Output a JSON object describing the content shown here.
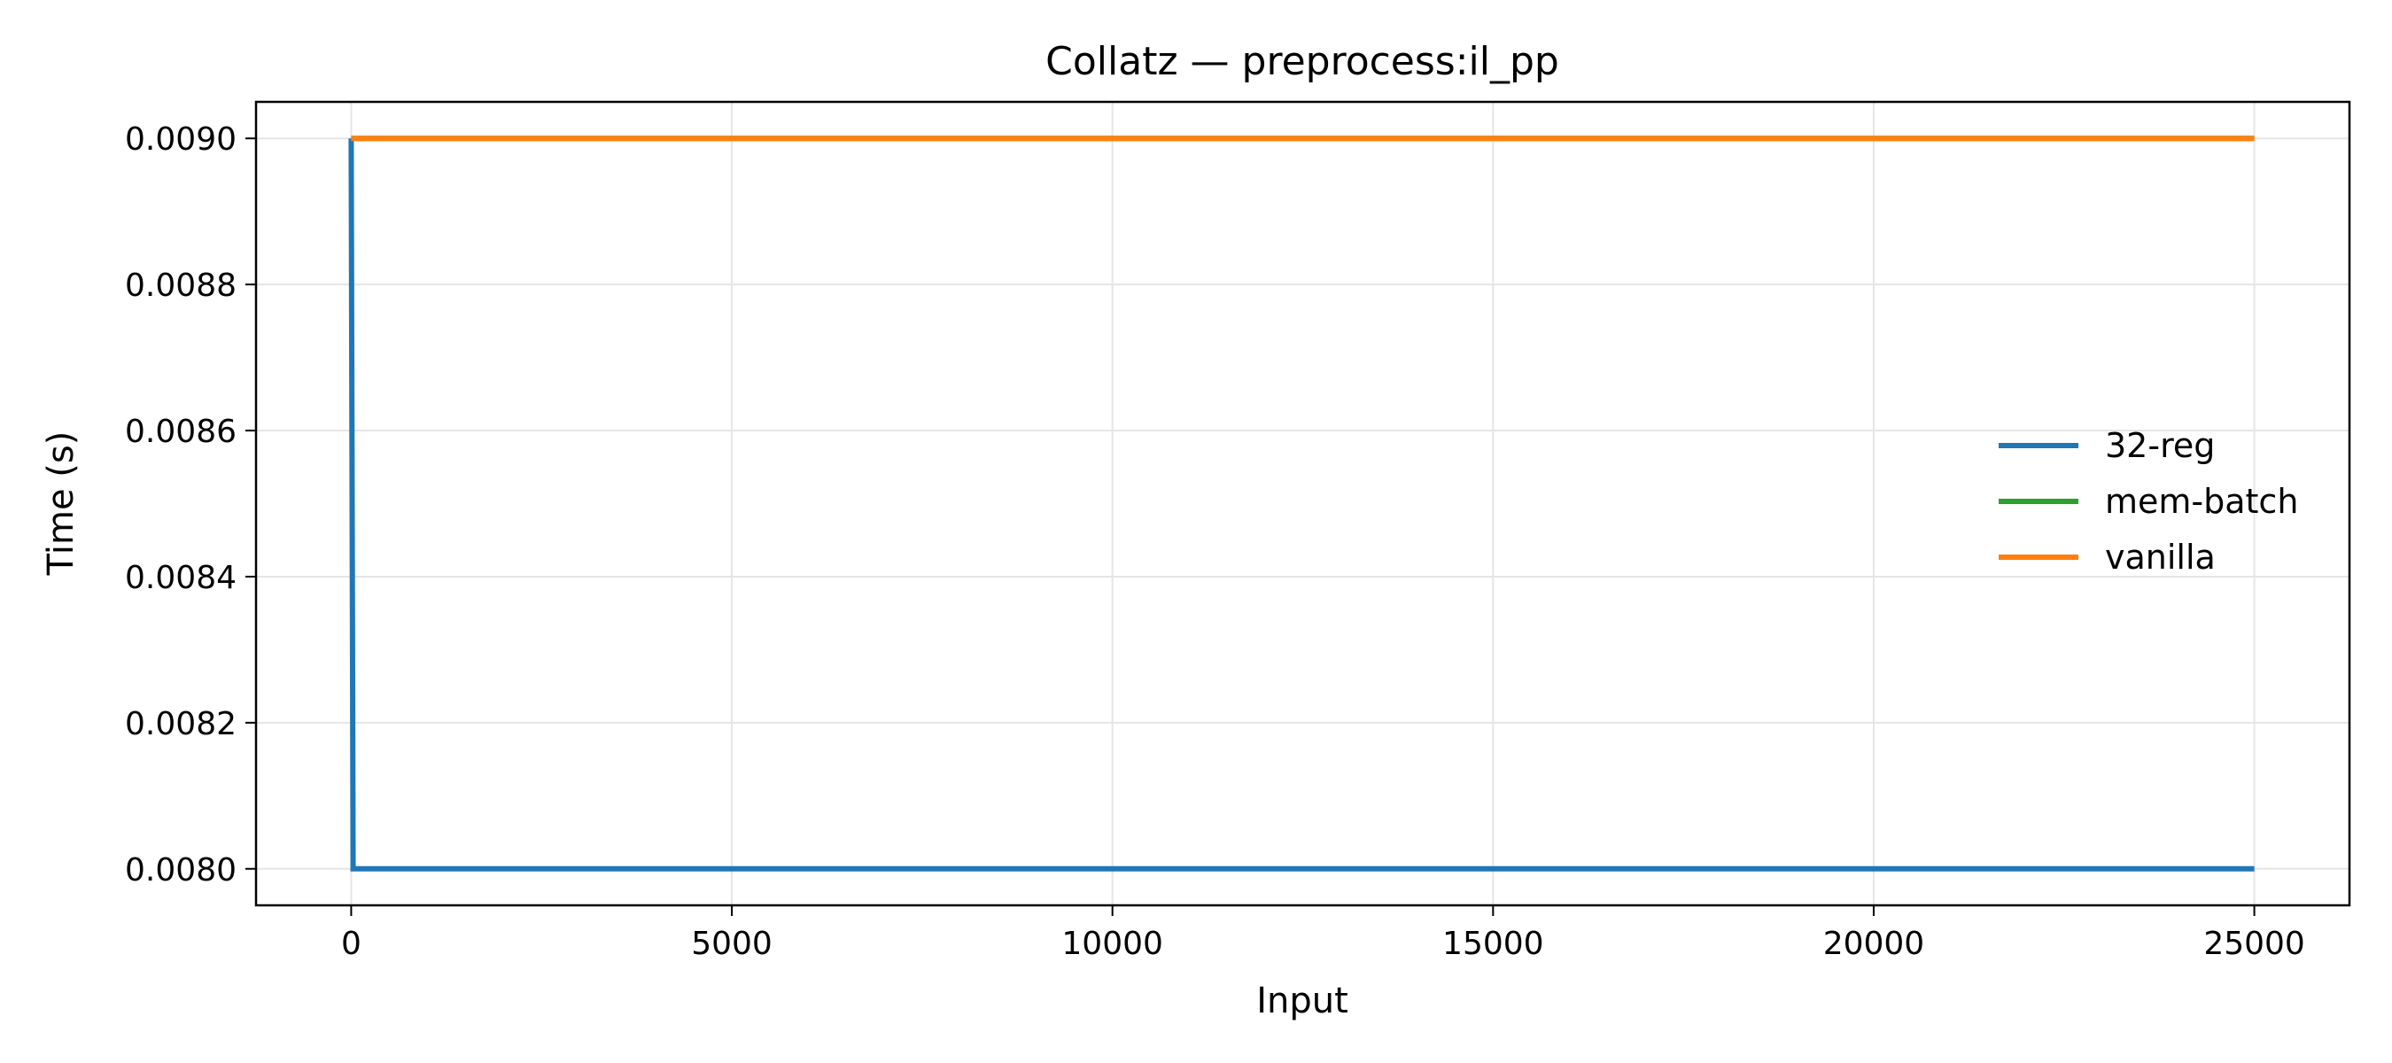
{
  "chart_data": {
    "type": "line",
    "title": "Collatz — preprocess:il_pp",
    "xlabel": "Input",
    "ylabel": "Time (s)",
    "xlim": [
      -1250,
      26250
    ],
    "ylim": [
      0.00795,
      0.00905
    ],
    "xticks": [
      0,
      5000,
      10000,
      15000,
      20000,
      25000
    ],
    "xtick_labels": [
      "0",
      "5000",
      "10000",
      "15000",
      "20000",
      "25000"
    ],
    "yticks": [
      0.008,
      0.0082,
      0.0084,
      0.0086,
      0.0088,
      0.009
    ],
    "ytick_labels": [
      "0.0080",
      "0.0082",
      "0.0084",
      "0.0086",
      "0.0088",
      "0.0090"
    ],
    "grid": true,
    "legend_position": "center-right",
    "series": [
      {
        "name": "32-reg",
        "color": "#1f77b4",
        "x": [
          0,
          25,
          25000
        ],
        "y": [
          0.009,
          0.008,
          0.008
        ]
      },
      {
        "name": "mem-batch",
        "color": "#2ca02c",
        "x": [
          0,
          25000
        ],
        "y": [
          0.009,
          0.009
        ]
      },
      {
        "name": "vanilla",
        "color": "#ff7f0e",
        "x": [
          0,
          25000
        ],
        "y": [
          0.009,
          0.009
        ]
      }
    ]
  }
}
